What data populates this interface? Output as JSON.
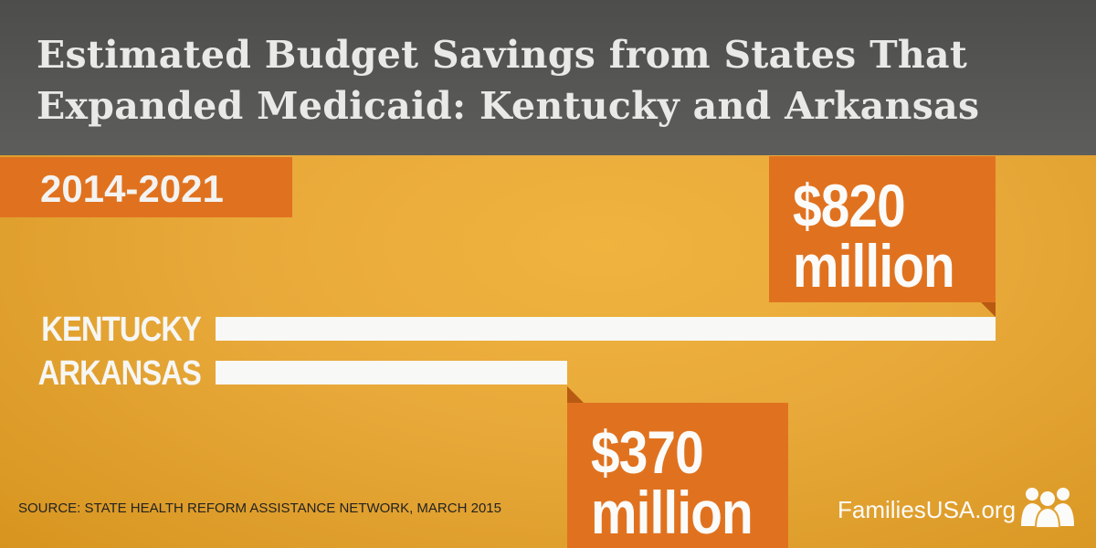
{
  "chart_data": {
    "type": "bar",
    "orientation": "horizontal",
    "title": "Estimated Budget Savings from States That Expanded Medicaid: Kentucky and Arkansas",
    "subtitle": "2014-2021",
    "categories": [
      "KENTUCKY",
      "ARKANSAS"
    ],
    "values": [
      820,
      370
    ],
    "value_labels": [
      {
        "amount": "$820",
        "unit": "million"
      },
      {
        "amount": "$370",
        "unit": "million"
      }
    ],
    "unit": "million dollars",
    "xlim": [
      0,
      820
    ],
    "grid": false
  },
  "footer": {
    "source": "SOURCE: STATE HEALTH REFORM ASSISTANCE NETWORK, MARCH 2015",
    "brand": "FamiliesUSA.org"
  },
  "colors": {
    "background": "#e8a93a",
    "header": "#555554",
    "accent": "#e0721f",
    "bar": "#f8f8f6"
  },
  "icons": {
    "logo": "families-usa-logo-icon"
  }
}
